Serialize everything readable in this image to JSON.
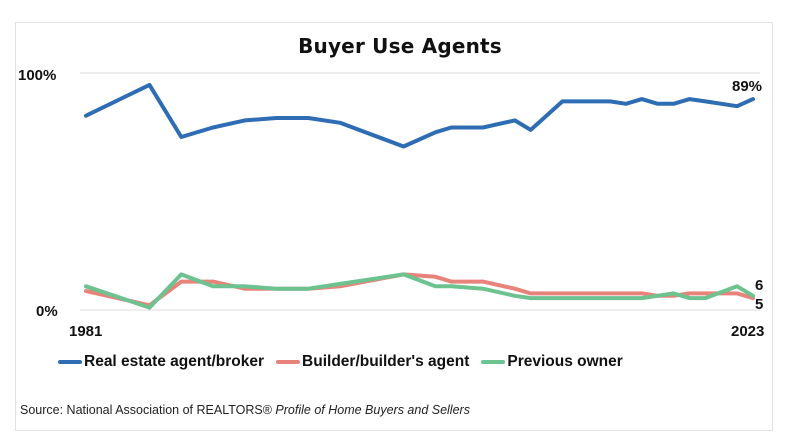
{
  "chart_data": {
    "type": "line",
    "title": "Buyer Use Agents",
    "xlabel": "",
    "ylabel": "",
    "ylim": [
      0,
      100
    ],
    "y_tick_labels": [
      "0%",
      "100%"
    ],
    "x_tick_labels": [
      "1981",
      "2023"
    ],
    "grid": "horizontal at 0% and 100%",
    "legend_position": "bottom",
    "x": [
      1981,
      1985,
      1987,
      1989,
      1991,
      1993,
      1995,
      1997,
      2001,
      2003,
      2004,
      2006,
      2008,
      2009,
      2011,
      2013,
      2014,
      2015,
      2016,
      2017,
      2018,
      2019,
      2020,
      2022,
      2023
    ],
    "series": [
      {
        "name": "Real estate agent/broker",
        "color": "#2e6db4",
        "values": [
          82,
          95,
          73,
          77,
          80,
          81,
          81,
          79,
          69,
          75,
          77,
          77,
          80,
          76,
          88,
          88,
          88,
          87,
          89,
          87,
          87,
          89,
          88,
          86,
          89
        ],
        "end_label": "89%"
      },
      {
        "name": "Builder/builder's agent",
        "color": "#e8837c",
        "values": [
          8,
          2,
          12,
          12,
          9,
          9,
          9,
          10,
          15,
          14,
          12,
          12,
          9,
          7,
          7,
          7,
          7,
          7,
          7,
          6,
          6,
          7,
          7,
          7,
          5
        ],
        "end_label": "5"
      },
      {
        "name": "Previous owner",
        "color": "#6cc38f",
        "values": [
          10,
          1,
          15,
          10,
          10,
          9,
          9,
          11,
          15,
          10,
          10,
          9,
          6,
          5,
          5,
          5,
          5,
          5,
          5,
          6,
          7,
          5,
          5,
          10,
          6
        ],
        "end_label": "6"
      }
    ]
  },
  "header": {
    "title": "Buyer Use Agents"
  },
  "axes": {
    "y_top_label": "100%",
    "y_bottom_label": "0%",
    "x_start_label": "1981",
    "x_end_label": "2023"
  },
  "annotations": {
    "agent_end": "89%",
    "owner_end": "6",
    "builder_end": "5"
  },
  "legend": {
    "items": [
      {
        "label": "Real estate agent/broker",
        "color": "#2e6db4"
      },
      {
        "label": "Builder/builder's agent",
        "color": "#e8837c"
      },
      {
        "label": "Previous owner",
        "color": "#6cc38f"
      }
    ]
  },
  "footer": {
    "source_prefix": "Source: National Association of REALTORS®",
    "source_title": "Profile of Home Buyers and Sellers"
  }
}
